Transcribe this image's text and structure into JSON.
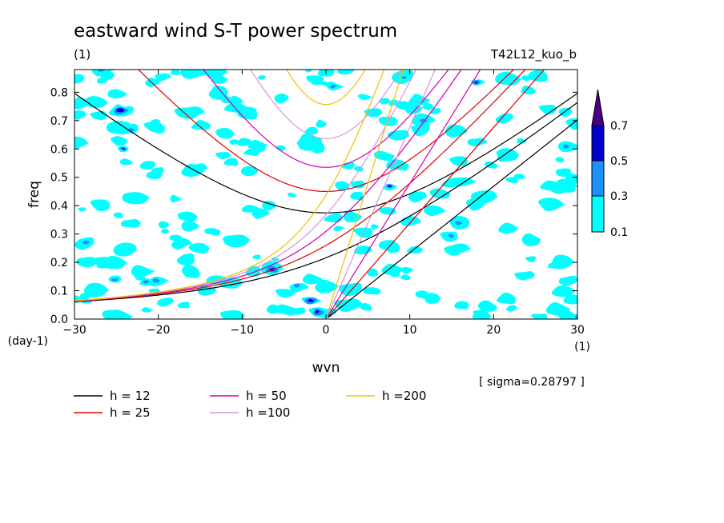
{
  "chart_data": {
    "type": "heatmap",
    "title": "eastward wind S-T power spectrum",
    "subtitle_left": "(1)",
    "subtitle_right": "T42L12_kuo_b",
    "xlabel": "wvn",
    "ylabel": "freq",
    "x_unit": "(1)",
    "y_unit": "(day-1)",
    "xlim": [
      -30,
      30
    ],
    "ylim": [
      0.0,
      0.88
    ],
    "x_ticks": [
      -30,
      -20,
      -10,
      0,
      10,
      20,
      30
    ],
    "y_ticks": [
      0.0,
      0.1,
      0.2,
      0.3,
      0.4,
      0.5,
      0.6,
      0.7,
      0.8
    ],
    "x_tick_labels": [
      "−30",
      "−20",
      "−10",
      "0",
      "10",
      "20",
      "30"
    ],
    "y_tick_labels": [
      "0.0",
      "0.1",
      "0.2",
      "0.3",
      "0.4",
      "0.5",
      "0.6",
      "0.7",
      "0.8"
    ],
    "annotation": "[ sigma=0.28797 ]",
    "colorbar": {
      "levels": [
        "0.1",
        "0.3",
        "0.5",
        "0.7"
      ],
      "colors": [
        "#00ffff",
        "#1e90ff",
        "#0000cd",
        "#4b0082"
      ]
    },
    "series": [
      {
        "name": "h = 12",
        "h": 12,
        "color": "#000000"
      },
      {
        "name": "h = 25",
        "h": 25,
        "color": "#e00000"
      },
      {
        "name": "h = 50",
        "h": 50,
        "color": "#d000b0"
      },
      {
        "name": "h =100",
        "h": 100,
        "color": "#dd90dd"
      },
      {
        "name": "h =200",
        "h": 200,
        "color": "#f0c000"
      }
    ]
  }
}
